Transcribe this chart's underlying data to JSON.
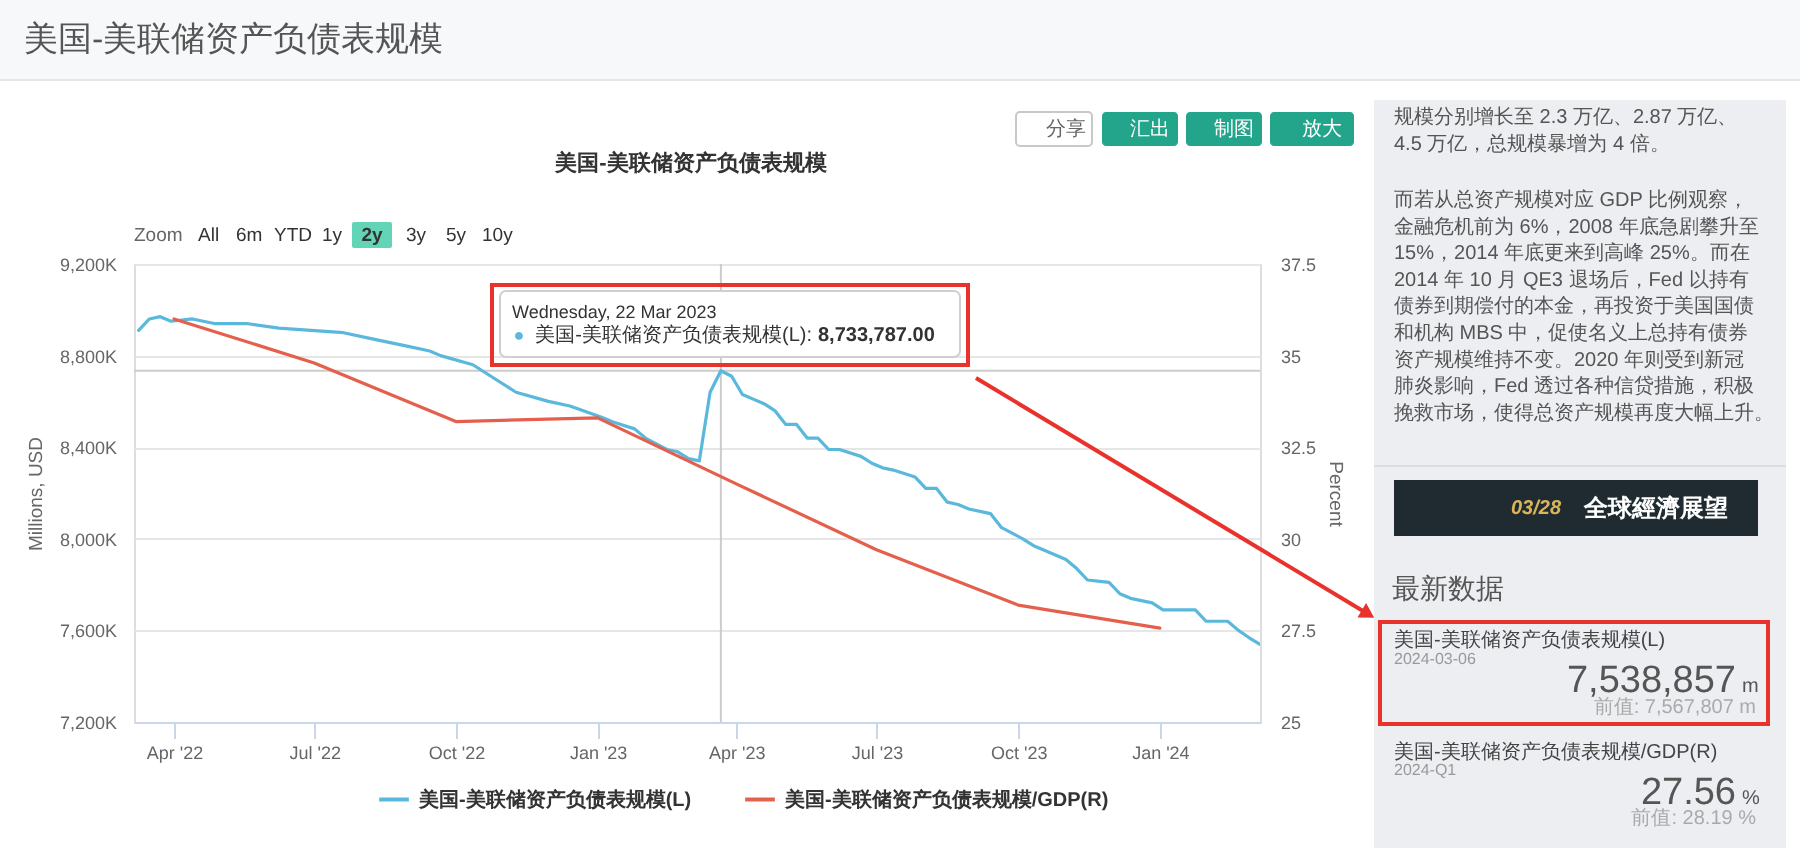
{
  "chart_data": {
    "type": "line",
    "title": "美国-美联储资产负债表规模",
    "ylabel": "Millions, USD",
    "y2label": "Percent",
    "xlim": [
      "2022-03-06",
      "2024-03-06"
    ],
    "xticks": [
      {
        "value": "2022-04-01",
        "label": "Apr '22"
      },
      {
        "value": "2022-07-01",
        "label": "Jul '22"
      },
      {
        "value": "2022-10-01",
        "label": "Oct '22"
      },
      {
        "value": "2023-01-01",
        "label": "Jan '23"
      },
      {
        "value": "2023-04-01",
        "label": "Apr '23"
      },
      {
        "value": "2023-07-01",
        "label": "Jul '23"
      },
      {
        "value": "2023-10-01",
        "label": "Oct '23"
      },
      {
        "value": "2024-01-01",
        "label": "Jan '24"
      }
    ],
    "ylim": [
      7200000,
      9200000
    ],
    "yticks": [
      {
        "value": 7200000,
        "label": "7,200K"
      },
      {
        "value": 7600000,
        "label": "7,600K"
      },
      {
        "value": 8000000,
        "label": "8,000K"
      },
      {
        "value": 8400000,
        "label": "8,400K"
      },
      {
        "value": 8800000,
        "label": "8,800K"
      },
      {
        "value": 9200000,
        "label": "9,200K"
      }
    ],
    "y2lim": [
      25,
      37.5
    ],
    "y2ticks": [
      25,
      27.5,
      30,
      32.5,
      35,
      37.5
    ],
    "grid": "y",
    "legend": "bottom",
    "series": [
      {
        "name": "美国-美联储资产负债表规模(L)",
        "color": "#5ab8dd",
        "x": [
          "2022-03-09",
          "2022-03-16",
          "2022-03-23",
          "2022-03-30",
          "2022-04-13",
          "2022-04-27",
          "2022-05-18",
          "2022-06-08",
          "2022-06-29",
          "2022-07-20",
          "2022-08-10",
          "2022-08-31",
          "2022-09-14",
          "2022-09-21",
          "2022-10-12",
          "2022-10-26",
          "2022-11-09",
          "2022-11-30",
          "2022-12-14",
          "2023-01-04",
          "2023-01-11",
          "2023-01-25",
          "2023-02-01",
          "2023-02-15",
          "2023-02-22",
          "2023-03-01",
          "2023-03-08",
          "2023-03-15",
          "2023-03-22",
          "2023-03-29",
          "2023-04-05",
          "2023-04-12",
          "2023-04-19",
          "2023-04-26",
          "2023-05-03",
          "2023-05-10",
          "2023-05-17",
          "2023-05-24",
          "2023-05-31",
          "2023-06-07",
          "2023-06-21",
          "2023-06-28",
          "2023-07-05",
          "2023-07-12",
          "2023-07-26",
          "2023-08-02",
          "2023-08-09",
          "2023-08-16",
          "2023-08-23",
          "2023-08-30",
          "2023-09-13",
          "2023-09-20",
          "2023-10-04",
          "2023-10-11",
          "2023-10-18",
          "2023-11-01",
          "2023-11-08",
          "2023-11-15",
          "2023-11-29",
          "2023-12-06",
          "2023-12-13",
          "2023-12-27",
          "2024-01-03",
          "2024-01-10",
          "2024-01-24",
          "2024-01-31",
          "2024-02-14",
          "2024-02-21",
          "2024-02-28",
          "2024-03-06"
        ],
        "values": [
          8910000,
          8960000,
          8970000,
          8950000,
          8960000,
          8940000,
          8940000,
          8920000,
          8910000,
          8900000,
          8870000,
          8840000,
          8820000,
          8800000,
          8760000,
          8700000,
          8640000,
          8600000,
          8580000,
          8530000,
          8510000,
          8480000,
          8440000,
          8390000,
          8380000,
          8350000,
          8340000,
          8640000,
          8733787,
          8710000,
          8630000,
          8610000,
          8590000,
          8560000,
          8500000,
          8500000,
          8440000,
          8440000,
          8390000,
          8390000,
          8360000,
          8330000,
          8310000,
          8300000,
          8270000,
          8220000,
          8220000,
          8160000,
          8150000,
          8130000,
          8110000,
          8050000,
          8000000,
          7970000,
          7950000,
          7910000,
          7870000,
          7820000,
          7810000,
          7760000,
          7740000,
          7720000,
          7690000,
          7690000,
          7690000,
          7640000,
          7640000,
          7600000,
          7567807,
          7538857
        ]
      },
      {
        "name": "美国-美联储资产负债表规模/GDP(R)",
        "color": "#e4604c",
        "axis": "y2",
        "x": [
          "2022-04-01",
          "2022-07-01",
          "2022-10-01",
          "2023-01-01",
          "2023-04-01",
          "2023-07-01",
          "2023-10-01",
          "2024-01-01"
        ],
        "values": [
          36.0,
          34.8,
          33.2,
          33.3,
          31.5,
          29.7,
          28.19,
          27.56
        ]
      }
    ],
    "ref_lines": [
      {
        "axis": "x",
        "value": "2023-03-22",
        "color": "#cccccc"
      },
      {
        "axis": "y",
        "value": 8733787,
        "color": "#cccccc"
      }
    ],
    "annotations": [
      "美国-美联储资产负债表规模",
      "分享",
      "汇出",
      "制图",
      "放大",
      "Zoom",
      "All",
      "6m",
      "YTD",
      "1y",
      "2y",
      "3y",
      "5y",
      "10y",
      "Wednesday, 22 Mar 2023",
      "●",
      "美国-美联储资产负债表规模(L):",
      "8,733,787.00",
      "规模分别增长至 2.3 万亿、2.87 万亿、4.5 万亿，总规模暴增为 4 倍。",
      "而若从总资产规模对应 GDP 比例观察，金融危机前为 6%，2008 年底急剧攀升至 15%，2014 年底更来到高峰 25%。而在 2014 年 10 月 QE3 退场后，Fed 以持有债券到期偿付的本金，再投资于美国国债和机构 MBS 中，促使名义上总持有债券资产规模维持不变。2020 年则受到新冠肺炎影响，Fed 透过各种信贷措施，积极挽救市场，使得总资产规模再度大幅上升。",
      "03/28",
      "全球經濟展望",
      "最新数据",
      "美国-美联储资产负债表规模(L)",
      "2024-03-06",
      "7,538,857",
      "m",
      "前值: 7,567,807 m",
      "美国-美联储资产负债表规模/GDP(R)",
      "2024-Q1",
      "27.56",
      "%",
      "前值: 28.19 %"
    ]
  }
}
